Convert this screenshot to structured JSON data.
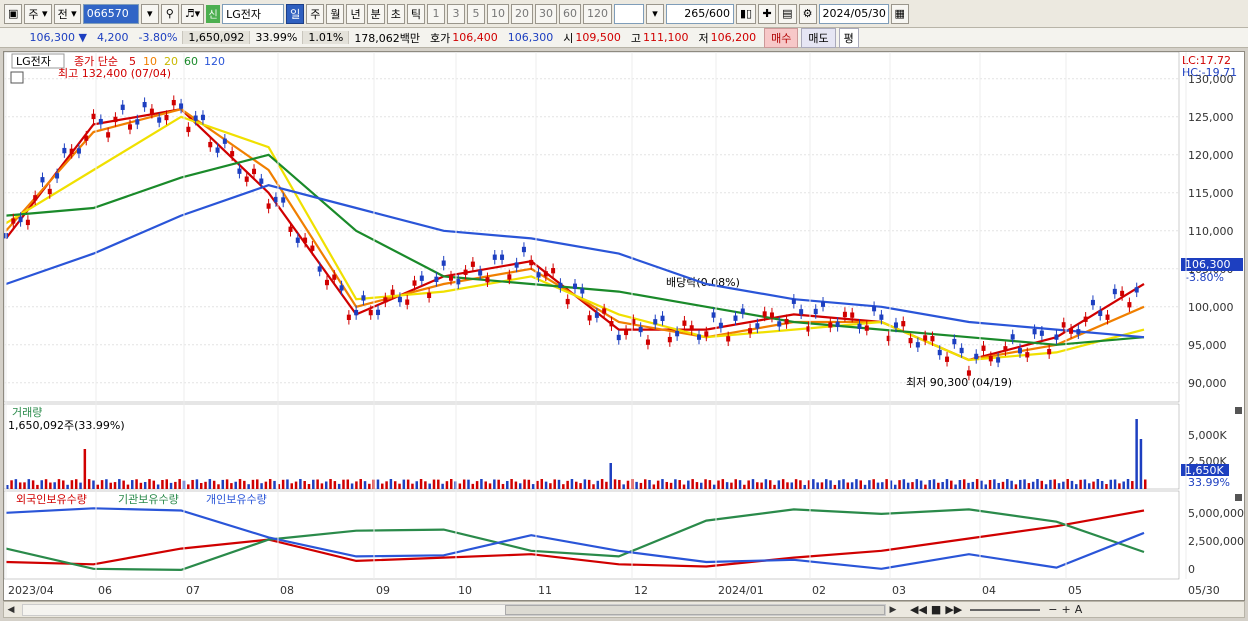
{
  "toolbar": {
    "period_type": "주",
    "market": "전",
    "stock_code": "066570",
    "sin_badge": "신",
    "stock_name": "LG전자",
    "periods": [
      "일",
      "주",
      "월",
      "년",
      "분",
      "초",
      "틱"
    ],
    "active_period": "일",
    "intervals": [
      "1",
      "3",
      "5",
      "10",
      "20",
      "30",
      "60",
      "120"
    ],
    "count": "265/600",
    "date": "2024/05/30"
  },
  "quote": {
    "price": "106,300 ▼",
    "change": "4,200",
    "change_pct": "-3.80%",
    "volume": "1,650,092",
    "turnover": "33.99%",
    "ratio": "1.01%",
    "amount": "178,062백만",
    "bid_label": "호가",
    "bid1": "106,400",
    "bid2": "106,300",
    "open_label": "시",
    "open": "109,500",
    "high_label": "고",
    "high": "111,100",
    "low_label": "저",
    "low": "106,200",
    "buy_label": "매수",
    "sell_label": "매도",
    "flat_label": "평"
  },
  "chart": {
    "stock_tag": "LG전자",
    "ma_legend_prefix": "종가 단순",
    "ma_periods": [
      "5",
      "10",
      "20",
      "60",
      "120"
    ],
    "ma_colors": [
      "#d00000",
      "#f07f00",
      "#f0e000",
      "#1a8a2a",
      "#2a55d8"
    ],
    "lc_label": "LC:17.72",
    "hc_label": "HC:-19.71",
    "high_annot": "최고 132,400 (07/04)",
    "low_annot": "최저 90,300 (04/19)",
    "dividend_annot": "배당락(0.08%)",
    "last_price_tag": "106,300",
    "last_pct_tag": "-3.80%",
    "price_ticks": [
      "130,000",
      "125,000",
      "120,000",
      "115,000",
      "110,000",
      "105,000",
      "100,000",
      "95,000",
      "90,000"
    ],
    "volume_title": "거래량",
    "volume_sub": "1,650,092주(33.99%)",
    "volume_ticks": [
      "5,000K",
      "2,500K"
    ],
    "volume_tag": "1,650K",
    "volume_pct_tag": "33.99%",
    "holders_legend": [
      "외국인보유수량",
      "기관보유수량",
      "개인보유수량"
    ],
    "holders_colors": [
      "#d00000",
      "#2a8a4a",
      "#2a55d8"
    ],
    "holders_ticks": [
      "5,000,000",
      "2,500,000",
      "0"
    ],
    "x_labels": [
      "2023/04",
      "06",
      "07",
      "08",
      "09",
      "10",
      "11",
      "12",
      "2024/01",
      "02",
      "03",
      "04",
      "05",
      "05/30"
    ]
  },
  "chart_data": {
    "type": "line",
    "title": "LG전자",
    "ylim": [
      88000,
      133000
    ],
    "x": [
      "2023/04",
      "06",
      "07",
      "08",
      "09",
      "10",
      "11",
      "12",
      "2024/01",
      "02",
      "03",
      "04",
      "05",
      "05/30"
    ],
    "series": [
      {
        "name": "5",
        "values": [
          109000,
          124000,
          126000,
          115000,
          99000,
          104000,
          106000,
          97000,
          97000,
          99000,
          98000,
          93000,
          96000,
          103000
        ]
      },
      {
        "name": "10",
        "values": [
          110000,
          123000,
          126000,
          118000,
          100000,
          103000,
          105000,
          98000,
          96000,
          98000,
          98000,
          93000,
          95000,
          100000
        ]
      },
      {
        "name": "20",
        "values": [
          111000,
          118000,
          125000,
          121000,
          101000,
          102000,
          104000,
          99000,
          96000,
          97000,
          98000,
          93000,
          94000,
          97000
        ]
      },
      {
        "name": "60",
        "values": [
          112000,
          113000,
          117000,
          120000,
          110000,
          104000,
          103000,
          102000,
          100000,
          98000,
          97000,
          96000,
          95000,
          96000
        ]
      },
      {
        "name": "120",
        "values": [
          103000,
          107000,
          112000,
          116000,
          113000,
          110000,
          109000,
          107000,
          103000,
          101000,
          100000,
          98000,
          97000,
          96000
        ]
      }
    ]
  }
}
